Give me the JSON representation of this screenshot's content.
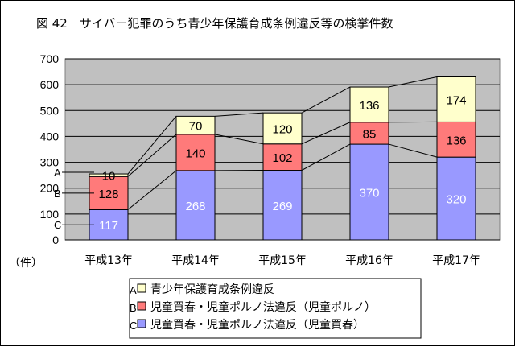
{
  "title": "図 42　サイバー犯罪のうち青少年保護育成条例違反等の検挙件数",
  "unit_label": "（件）",
  "markers": [
    "A",
    "B",
    "C"
  ],
  "legend": [
    {
      "key": "A",
      "label": "青少年保護育成条例違反"
    },
    {
      "key": "B",
      "label": "児童買春・児童ポルノ法違反（児童ポルノ）"
    },
    {
      "key": "C",
      "label": "児童買春・児童ポルノ法違反（児童買春）"
    }
  ],
  "colors": {
    "plot_bg": "#c0c0c0",
    "A": "#ffffcc",
    "B": "#ff7a7a",
    "C": "#9999ff"
  },
  "chart_data": {
    "type": "bar",
    "stacked": true,
    "categories": [
      "平成13年",
      "平成14年",
      "平成15年",
      "平成16年",
      "平成17年"
    ],
    "series": [
      {
        "name": "児童買春・児童ポルノ法違反（児童買春）",
        "key": "C",
        "values": [
          117,
          268,
          269,
          370,
          320
        ]
      },
      {
        "name": "児童買春・児童ポルノ法違反（児童ポルノ）",
        "key": "B",
        "values": [
          128,
          140,
          102,
          85,
          136
        ]
      },
      {
        "name": "青少年保護育成条例違反",
        "key": "A",
        "values": [
          10,
          70,
          120,
          136,
          174
        ]
      }
    ],
    "ylim": [
      0,
      700
    ],
    "yticks": [
      0,
      100,
      200,
      300,
      400,
      500,
      600,
      700
    ],
    "grid": true,
    "series_lines": true,
    "legend_position": "bottom"
  }
}
